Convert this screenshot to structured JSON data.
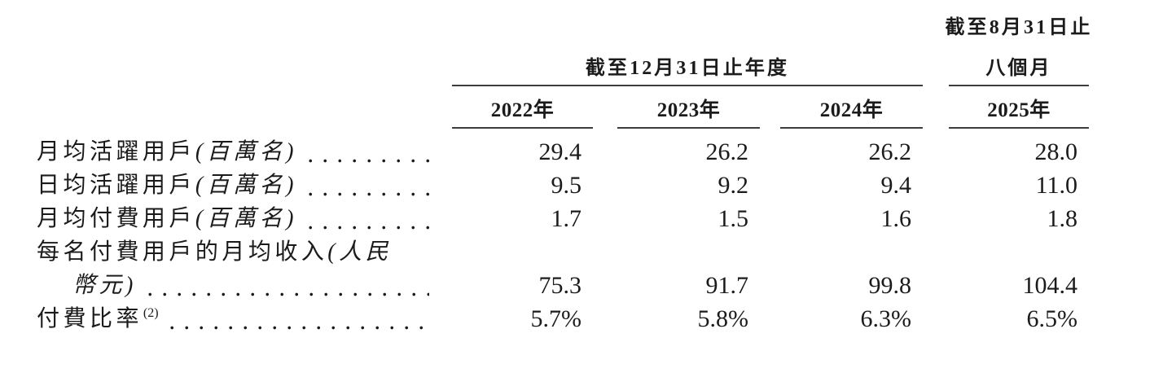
{
  "page": {
    "background": "#ffffff",
    "text_color": "#1b1b1b",
    "rule_color": "#3d3d3d"
  },
  "table": {
    "groups": [
      {
        "title_line1": "",
        "title_line2": "截至12月31日止年度",
        "span_columns": 3
      },
      {
        "title_line1": "截至8月31日止",
        "title_line2": "八個月",
        "span_columns": 1
      }
    ],
    "columns": [
      "2022年",
      "2023年",
      "2024年",
      "2025年"
    ],
    "rows": [
      {
        "lines": [
          {
            "segments": [
              {
                "text": "月均活躍用戶",
                "italic": false
              },
              {
                "text": "(百萬名)",
                "italic": true
              }
            ],
            "dots": true,
            "values_here": true,
            "indent": false
          }
        ],
        "values": [
          "29.4",
          "26.2",
          "26.2",
          "28.0"
        ]
      },
      {
        "lines": [
          {
            "segments": [
              {
                "text": "日均活躍用戶",
                "italic": false
              },
              {
                "text": "(百萬名)",
                "italic": true
              }
            ],
            "dots": true,
            "values_here": true,
            "indent": false
          }
        ],
        "values": [
          "9.5",
          "9.2",
          "9.4",
          "11.0"
        ]
      },
      {
        "lines": [
          {
            "segments": [
              {
                "text": "月均付費用戶",
                "italic": false
              },
              {
                "text": "(百萬名)",
                "italic": true
              }
            ],
            "dots": true,
            "values_here": true,
            "indent": false
          }
        ],
        "values": [
          "1.7",
          "1.5",
          "1.6",
          "1.8"
        ]
      },
      {
        "lines": [
          {
            "segments": [
              {
                "text": "每名付費用戶的月均收入",
                "italic": false
              },
              {
                "text": "(人民",
                "italic": true
              }
            ],
            "dots": false,
            "values_here": false,
            "indent": false
          },
          {
            "segments": [
              {
                "text": "幣元)",
                "italic": true
              }
            ],
            "dots": true,
            "values_here": true,
            "indent": true
          }
        ],
        "values": [
          "75.3",
          "91.7",
          "99.8",
          "104.4"
        ]
      },
      {
        "lines": [
          {
            "segments": [
              {
                "text": "付費比率",
                "italic": false
              },
              {
                "text": "(2)",
                "italic": false,
                "sup": true
              }
            ],
            "dots": true,
            "values_here": true,
            "indent": false
          }
        ],
        "values": [
          "5.7%",
          "5.8%",
          "6.3%",
          "6.5%"
        ]
      }
    ]
  }
}
